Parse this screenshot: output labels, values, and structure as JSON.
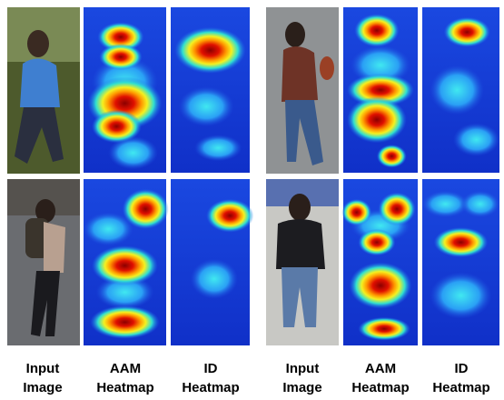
{
  "groups": [
    {
      "captions": [
        {
          "line1": "Input",
          "line2": "Image"
        },
        {
          "line1": "AAM",
          "line2": "Heatmap"
        },
        {
          "line1": "ID",
          "line2": "Heatmap"
        }
      ]
    },
    {
      "captions": [
        {
          "line1": "Input",
          "line2": "Image"
        },
        {
          "line1": "AAM",
          "line2": "Heatmap"
        },
        {
          "line1": "ID",
          "line2": "Heatmap"
        }
      ]
    }
  ]
}
